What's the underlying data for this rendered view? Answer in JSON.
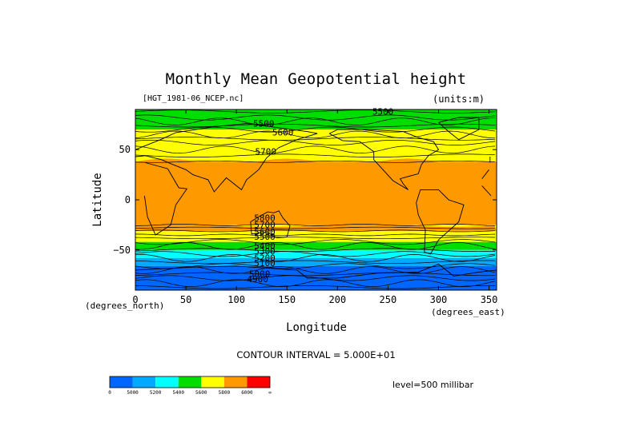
{
  "chart_data": {
    "type": "heatmap",
    "title": "Monthly Mean Geopotential height",
    "source_label": "[HGT_1981-06_NCEP.nc]",
    "units_label": "(units:m)",
    "xlabel": "Longitude",
    "ylabel": "Latitude",
    "x_units": "(degrees_east)",
    "y_units": "(degrees_north)",
    "xlim": [
      0,
      357.5
    ],
    "ylim": [
      -90,
      90
    ],
    "x_ticks": [
      0,
      50,
      100,
      150,
      200,
      250,
      300,
      350
    ],
    "y_ticks": [
      50,
      0,
      -50
    ],
    "y_tick_labels": [
      "50",
      "0",
      "−50"
    ],
    "contour_interval_text": "CONTOUR INTERVAL = 5.000E+01",
    "level_text": "level=500 millibar",
    "colorbar": {
      "colors": [
        "#0066ff",
        "#00aaff",
        "#00ffff",
        "#00dd00",
        "#ffff00",
        "#ff9900",
        "#ff0000"
      ],
      "labels": [
        "0",
        "5000",
        "5200",
        "5400",
        "5600",
        "5800",
        "6000",
        "∞"
      ]
    },
    "zonal_bands": [
      {
        "lat_from": 90,
        "lat_to": 84,
        "value_class": "5400-5600"
      },
      {
        "lat_from": 84,
        "lat_to": 70,
        "value_class": "5400-5600"
      },
      {
        "lat_from": 70,
        "lat_to": 57,
        "value_class": "5600-5800"
      },
      {
        "lat_from": 57,
        "lat_to": 38,
        "value_class": "5600-5800"
      },
      {
        "lat_from": 38,
        "lat_to": -25,
        "value_class": "5800-6000"
      },
      {
        "lat_from": -25,
        "lat_to": -42,
        "value_class": "5600-5800"
      },
      {
        "lat_from": -42,
        "lat_to": -50,
        "value_class": "5400-5600"
      },
      {
        "lat_from": -50,
        "lat_to": -58,
        "value_class": "5200-5400"
      },
      {
        "lat_from": -58,
        "lat_to": -66,
        "value_class": "5000-5200"
      },
      {
        "lat_from": -66,
        "lat_to": -90,
        "value_class": "0-5000"
      }
    ],
    "contour_labels": [
      {
        "text": "5500",
        "lon": 245,
        "lat": 85
      },
      {
        "text": "5500",
        "lon": 127,
        "lat": 73
      },
      {
        "text": "5600",
        "lon": 146,
        "lat": 64
      },
      {
        "text": "5700",
        "lon": 129,
        "lat": 45
      },
      {
        "text": "5800",
        "lon": 128,
        "lat": -21
      },
      {
        "text": "5700",
        "lon": 128,
        "lat": -28
      },
      {
        "text": "5600",
        "lon": 128,
        "lat": -35
      },
      {
        "text": "5500",
        "lon": 128,
        "lat": -40
      },
      {
        "text": "5400",
        "lon": 128,
        "lat": -49
      },
      {
        "text": "5300",
        "lon": 128,
        "lat": -54
      },
      {
        "text": "5200",
        "lon": 128,
        "lat": -61
      },
      {
        "text": "5100",
        "lon": 128,
        "lat": -66
      },
      {
        "text": "5000",
        "lon": 123,
        "lat": -77
      },
      {
        "text": "4900",
        "lon": 121,
        "lat": -82
      }
    ]
  }
}
